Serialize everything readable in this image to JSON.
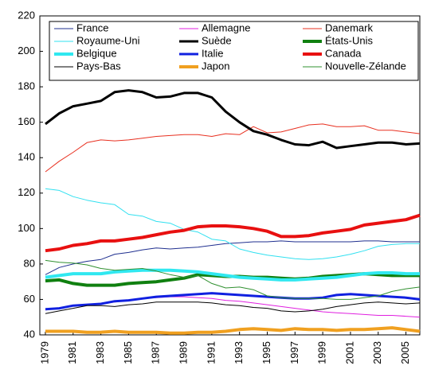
{
  "chart_data": {
    "type": "line",
    "x": [
      1979,
      1980,
      1981,
      1982,
      1983,
      1984,
      1985,
      1986,
      1987,
      1988,
      1989,
      1990,
      1991,
      1992,
      1993,
      1994,
      1995,
      1996,
      1997,
      1998,
      1999,
      2000,
      2001,
      2002,
      2003,
      2004,
      2005,
      2006
    ],
    "xlim": [
      1978.6,
      2006
    ],
    "xticks": [
      1979,
      1981,
      1983,
      1985,
      1987,
      1989,
      1991,
      1993,
      1995,
      1997,
      1999,
      2001,
      2003,
      2005
    ],
    "ylim": [
      40,
      220
    ],
    "yticks": [
      40,
      60,
      80,
      100,
      120,
      140,
      160,
      180,
      200,
      220
    ],
    "grid": false,
    "legend": "top",
    "series": [
      {
        "name": "France",
        "color": "#1f2f8f",
        "width": 1,
        "values": [
          74,
          78,
          80,
          81.5,
          82.5,
          85.5,
          86.5,
          88,
          89,
          88.5,
          89,
          89.5,
          90.5,
          91.5,
          92,
          92.5,
          92.5,
          93,
          92.5,
          92.5,
          92.5,
          92.5,
          92.5,
          93,
          93,
          92.5,
          92.5,
          92.5
        ]
      },
      {
        "name": "Allemagne",
        "color": "#e020e0",
        "width": 1,
        "values": [
          54,
          55,
          56.5,
          57,
          57.5,
          58.5,
          59.5,
          60.5,
          61,
          61.5,
          61.5,
          61,
          60.5,
          59.5,
          59,
          58,
          57,
          56,
          55,
          54,
          53,
          52.5,
          52,
          51.5,
          51,
          51,
          50.5,
          50
        ]
      },
      {
        "name": "Danemark",
        "color": "#e83020",
        "width": 1,
        "values": [
          132,
          138,
          143,
          148.5,
          150,
          149.5,
          150,
          151,
          152,
          152.5,
          153,
          153,
          152,
          153.5,
          153,
          157.5,
          154,
          154.5,
          156.5,
          158.5,
          159,
          157.5,
          157.5,
          158,
          155.5,
          155.5,
          154.5,
          153.5
        ]
      },
      {
        "name": "Royaume-Uni",
        "color": "#30e0f0",
        "width": 1,
        "values": [
          122.5,
          121.5,
          118,
          116,
          114.5,
          113.5,
          108,
          107,
          104,
          103,
          99.5,
          98,
          94,
          93,
          88.5,
          86.5,
          85,
          84,
          83,
          82.5,
          83,
          84,
          85.5,
          87.5,
          90,
          91,
          91.5,
          91.5
        ]
      },
      {
        "name": "Suède",
        "color": "#000000",
        "width": 3,
        "values": [
          159,
          165,
          169,
          170.5,
          172,
          177,
          178,
          177,
          174,
          174.5,
          176.5,
          176.5,
          174,
          166,
          160,
          155,
          153,
          150,
          147.5,
          147,
          149,
          145.5,
          146.5,
          147.5,
          148.5,
          148.5,
          147.5,
          148
        ]
      },
      {
        "name": "États-Unis",
        "color": "#108010",
        "width": 4,
        "values": [
          70.5,
          71,
          69,
          68,
          68,
          68,
          69,
          69.5,
          70,
          71,
          72,
          74,
          73.5,
          73,
          73,
          72.5,
          72.5,
          72,
          71.5,
          72,
          73,
          73.5,
          74,
          74.5,
          74,
          73.5,
          73.5,
          73.5
        ]
      },
      {
        "name": "Belgique",
        "color": "#30e8f0",
        "width": 4,
        "values": [
          72.5,
          73.5,
          74.5,
          74.5,
          74.5,
          75.5,
          76,
          76.5,
          76.5,
          76.5,
          76,
          75.5,
          74.5,
          73.5,
          72.5,
          72,
          71.5,
          71,
          71,
          71.5,
          72,
          72.5,
          73.5,
          74.5,
          75,
          75,
          74.5,
          74.5
        ]
      },
      {
        "name": "Italie",
        "color": "#1020e0",
        "width": 3,
        "values": [
          54.5,
          55,
          56.5,
          57,
          57.5,
          59,
          59.5,
          60.5,
          61.5,
          62,
          62.5,
          63,
          63.5,
          63,
          62.5,
          62,
          61.5,
          61,
          60.5,
          60.5,
          61,
          62.5,
          63,
          62.5,
          62,
          61.5,
          61,
          60
        ]
      },
      {
        "name": "Canada",
        "color": "#e81010",
        "width": 4,
        "values": [
          87.5,
          88.5,
          90.5,
          91.5,
          93,
          93,
          94,
          95,
          96.5,
          98,
          99,
          101,
          101.5,
          101.5,
          101,
          100,
          98.5,
          95.5,
          95.5,
          96,
          97.5,
          98.5,
          99.5,
          102,
          103,
          104,
          105,
          107.5
        ]
      },
      {
        "name": "Pays-Bas",
        "color": "#000000",
        "width": 1,
        "values": [
          52,
          53.5,
          55,
          56.5,
          56.5,
          56,
          57,
          57.5,
          58.5,
          58.5,
          58.5,
          58.5,
          58,
          57,
          56.5,
          55.5,
          55,
          53.5,
          53,
          53.5,
          54.5,
          56,
          57,
          58,
          58.5,
          58,
          57.5,
          58
        ]
      },
      {
        "name": "Japon",
        "color": "#f0a020",
        "width": 4,
        "values": [
          42,
          42,
          42,
          41.5,
          41.5,
          42,
          41.5,
          41.5,
          41.5,
          41,
          41,
          41.5,
          41.5,
          42,
          43,
          43.5,
          43,
          42.5,
          43.5,
          43,
          43,
          42.5,
          43,
          43,
          43.5,
          44,
          43,
          42
        ]
      },
      {
        "name": "Nouvelle-Zélande",
        "color": "#309030",
        "width": 1,
        "values": [
          82,
          81,
          80.5,
          79.5,
          77.5,
          76.5,
          77,
          77.5,
          76,
          74,
          72.5,
          73.5,
          69,
          66.5,
          67,
          65.5,
          62,
          61,
          60.5,
          60.5,
          60.5,
          60,
          60,
          61,
          62,
          64.5,
          66,
          67
        ]
      }
    ]
  }
}
